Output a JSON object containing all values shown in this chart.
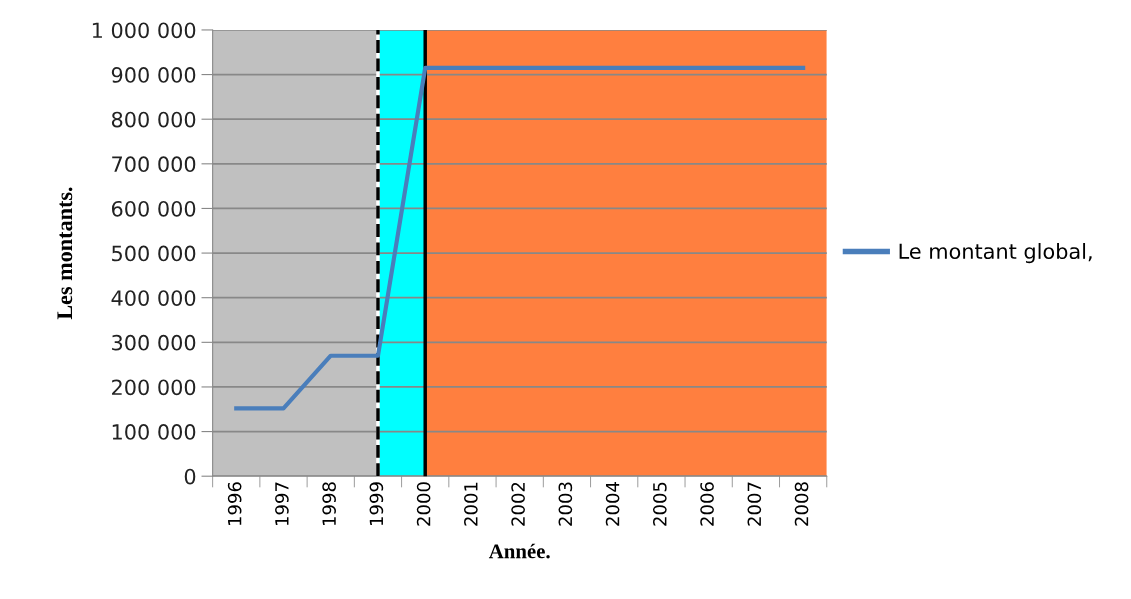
{
  "chart_data": {
    "type": "line",
    "xlabel": "Année.",
    "ylabel": "Les montants.",
    "x": [
      1996,
      1997,
      1998,
      1999,
      2000,
      2001,
      2002,
      2003,
      2004,
      2005,
      2006,
      2007,
      2008
    ],
    "series": [
      {
        "name": "Le montant global,",
        "color": "#4a7ebb",
        "values": [
          152000,
          152000,
          270000,
          270000,
          915000,
          915000,
          915000,
          915000,
          915000,
          915000,
          915000,
          915000,
          915000
        ]
      }
    ],
    "xlim": [
      1995.5,
      2008.5
    ],
    "xticks": [
      1996,
      1997,
      1998,
      1999,
      2000,
      2001,
      2002,
      2003,
      2004,
      2005,
      2006,
      2007,
      2008
    ],
    "ylim": [
      0,
      1000000
    ],
    "yticks": [
      {
        "value": 0,
        "label": "0"
      },
      {
        "value": 100000,
        "label": "100 000"
      },
      {
        "value": 200000,
        "label": "200 000"
      },
      {
        "value": 300000,
        "label": "300 000"
      },
      {
        "value": 400000,
        "label": "400 000"
      },
      {
        "value": 500000,
        "label": "500 000"
      },
      {
        "value": 600000,
        "label": "600 000"
      },
      {
        "value": 700000,
        "label": "700 000"
      },
      {
        "value": 800000,
        "label": "800 000"
      },
      {
        "value": 900000,
        "label": "900 000"
      },
      {
        "value": 1000000,
        "label": "1 000 000"
      }
    ],
    "bands": [
      {
        "axis": "x",
        "from": 1995.5,
        "to": 1999,
        "color": "#c0c0c0"
      },
      {
        "axis": "x",
        "from": 1999,
        "to": 2000,
        "color": "#00ffff"
      },
      {
        "axis": "x",
        "from": 2000,
        "to": 2008.5,
        "color": "#ff7f3f"
      }
    ],
    "ref_lines": [
      {
        "axis": "x",
        "value": 1999,
        "color": "#ffffff",
        "line_style": "solid"
      },
      {
        "axis": "x",
        "value": 1999,
        "color": "#000000",
        "line_style": "dashed"
      },
      {
        "axis": "x",
        "value": 2000,
        "color": "#000000",
        "line_style": "solid"
      }
    ],
    "grid": "y",
    "legend": "right",
    "marker": "none",
    "line_style": "solid"
  }
}
